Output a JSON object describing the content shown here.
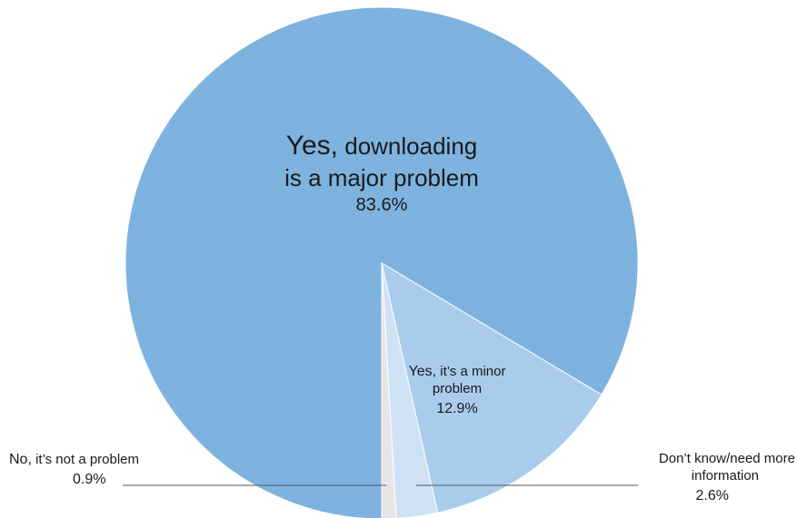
{
  "chart_data": {
    "type": "pie",
    "slices": [
      {
        "label_bold": "Yes,",
        "label_rest": " downloading is a major problem",
        "value": 83.6,
        "value_label": "83.6%",
        "color": "#7eb3e0"
      },
      {
        "label_bold": "Yes,",
        "label_rest": " it’s a minor problem",
        "value": 12.9,
        "value_label": "12.9%",
        "color": "#a9ccec"
      },
      {
        "label_bold": "",
        "label_rest": "Don’t know/need more information",
        "value": 2.6,
        "value_label": "2.6%",
        "color": "#cfe2f5"
      },
      {
        "label_bold": "No,",
        "label_rest": " it’s not a problem",
        "value": 0.9,
        "value_label": "0.9%",
        "color": "#e6e6e6"
      }
    ]
  },
  "labels": {
    "major": {
      "bold": "Yes,",
      "line1": " downloading",
      "line2": "is a major problem",
      "pct": "83.6%"
    },
    "minor": {
      "bold": "Yes,",
      "line1": " it’s a minor",
      "line2": "problem",
      "pct": "12.9%"
    },
    "no": {
      "bold": "No,",
      "text": " it’s not a problem",
      "pct": "0.9%"
    },
    "dk": {
      "line1": "Don’t know/need more",
      "line2": "information",
      "pct": "2.6%"
    }
  }
}
